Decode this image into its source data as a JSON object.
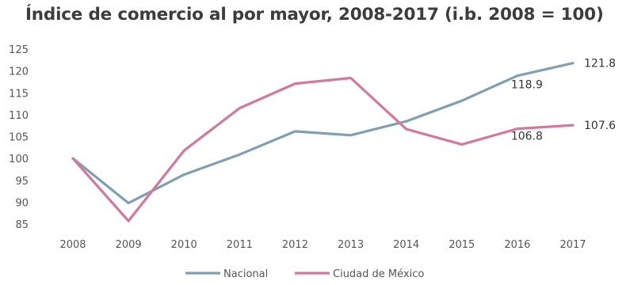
{
  "chart_data": {
    "type": "line",
    "title": "Índice de comercio al por mayor, 2008-2017 (i.b. 2008 = 100)",
    "xlabel": "",
    "ylabel": "",
    "categories": [
      "2008",
      "2009",
      "2010",
      "2011",
      "2012",
      "2013",
      "2014",
      "2015",
      "2016",
      "2017"
    ],
    "ylim": [
      85,
      125
    ],
    "yticks": [
      85,
      90,
      95,
      100,
      105,
      110,
      115,
      120,
      125
    ],
    "grid": false,
    "legend_position": "bottom",
    "series": [
      {
        "name": "Nacional",
        "color": "#7f9fb3",
        "values": [
          100,
          89.8,
          96.3,
          100.9,
          106.2,
          105.3,
          108.5,
          113.2,
          118.9,
          121.8
        ]
      },
      {
        "name": "Ciudad de México",
        "color": "#d4789c",
        "values": [
          100,
          85.7,
          101.8,
          111.5,
          117.1,
          118.4,
          106.7,
          103.2,
          106.8,
          107.6
        ]
      }
    ],
    "data_labels": [
      {
        "series": 0,
        "index": 8,
        "text": "118.9"
      },
      {
        "series": 0,
        "index": 9,
        "text": "121.8"
      },
      {
        "series": 1,
        "index": 8,
        "text": "106.8"
      },
      {
        "series": 1,
        "index": 9,
        "text": "107.6"
      }
    ]
  }
}
